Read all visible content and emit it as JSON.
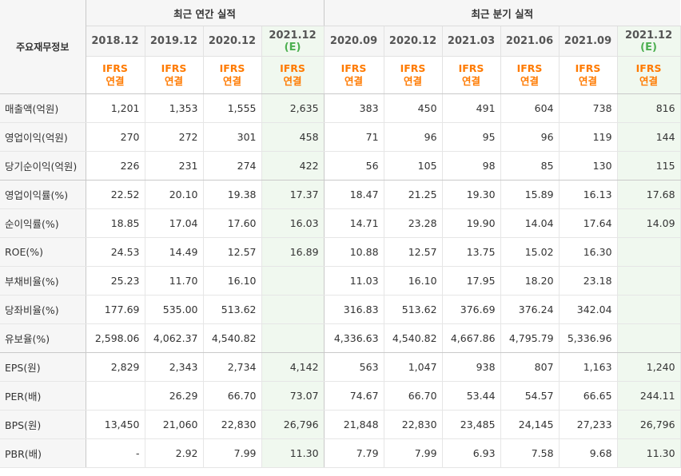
{
  "header": {
    "corner_label": "주요재무정보",
    "annual_title": "최근 연간 실적",
    "quarterly_title": "최근 분기 실적",
    "ifrs_line1": "IFRS",
    "ifrs_line2": "연결",
    "estimate_mark": "(E)",
    "annual_periods": [
      "2018.12",
      "2019.12",
      "2020.12",
      "2021.12"
    ],
    "quarterly_periods": [
      "2020.09",
      "2020.12",
      "2021.03",
      "2021.06",
      "2021.09",
      "2021.12"
    ]
  },
  "rows": [
    {
      "label": "매출액(억원)",
      "values": [
        "1,201",
        "1,353",
        "1,555",
        "2,635",
        "383",
        "450",
        "491",
        "604",
        "738",
        "816"
      ]
    },
    {
      "label": "영업이익(억원)",
      "values": [
        "270",
        "272",
        "301",
        "458",
        "71",
        "96",
        "95",
        "96",
        "119",
        "144"
      ]
    },
    {
      "label": "당기순이익(억원)",
      "values": [
        "226",
        "231",
        "274",
        "422",
        "56",
        "105",
        "98",
        "85",
        "130",
        "115"
      ]
    },
    {
      "label": "영업이익률(%)",
      "values": [
        "22.52",
        "20.10",
        "19.38",
        "17.37",
        "18.47",
        "21.25",
        "19.30",
        "15.89",
        "16.13",
        "17.68"
      ]
    },
    {
      "label": "순이익률(%)",
      "values": [
        "18.85",
        "17.04",
        "17.60",
        "16.03",
        "14.71",
        "23.28",
        "19.90",
        "14.04",
        "17.64",
        "14.09"
      ]
    },
    {
      "label": "ROE(%)",
      "values": [
        "24.53",
        "14.49",
        "12.57",
        "16.89",
        "10.88",
        "12.57",
        "13.75",
        "15.02",
        "16.30",
        ""
      ]
    },
    {
      "label": "부채비율(%)",
      "values": [
        "25.23",
        "11.70",
        "16.10",
        "",
        "11.03",
        "16.10",
        "17.95",
        "18.20",
        "23.18",
        ""
      ]
    },
    {
      "label": "당좌비율(%)",
      "values": [
        "177.69",
        "535.00",
        "513.62",
        "",
        "316.83",
        "513.62",
        "376.69",
        "376.24",
        "342.04",
        ""
      ]
    },
    {
      "label": "유보율(%)",
      "values": [
        "2,598.06",
        "4,062.37",
        "4,540.82",
        "",
        "4,336.63",
        "4,540.82",
        "4,667.86",
        "4,795.79",
        "5,336.96",
        ""
      ]
    },
    {
      "label": "EPS(원)",
      "values": [
        "2,829",
        "2,343",
        "2,734",
        "4,142",
        "563",
        "1,047",
        "938",
        "807",
        "1,163",
        "1,240"
      ]
    },
    {
      "label": "PER(배)",
      "values": [
        "",
        "26.29",
        "66.70",
        "73.07",
        "74.67",
        "66.70",
        "53.44",
        "54.57",
        "66.65",
        "244.11"
      ]
    },
    {
      "label": "BPS(원)",
      "values": [
        "13,450",
        "21,060",
        "22,830",
        "26,796",
        "21,848",
        "22,830",
        "23,485",
        "24,145",
        "27,233",
        "26,796"
      ]
    },
    {
      "label": "PBR(배)",
      "values": [
        "-",
        "2.92",
        "7.99",
        "11.30",
        "7.79",
        "7.99",
        "6.93",
        "7.58",
        "9.68",
        "11.30"
      ]
    }
  ],
  "estimate_columns": [
    3,
    9
  ],
  "group_end_rows": [
    2,
    8
  ],
  "colors": {
    "ifrs_orange": "#ff7a00",
    "estimate_green": "#4caf50",
    "estimate_bg": "#f0f8ef",
    "header_bg": "#f6f6f6"
  }
}
